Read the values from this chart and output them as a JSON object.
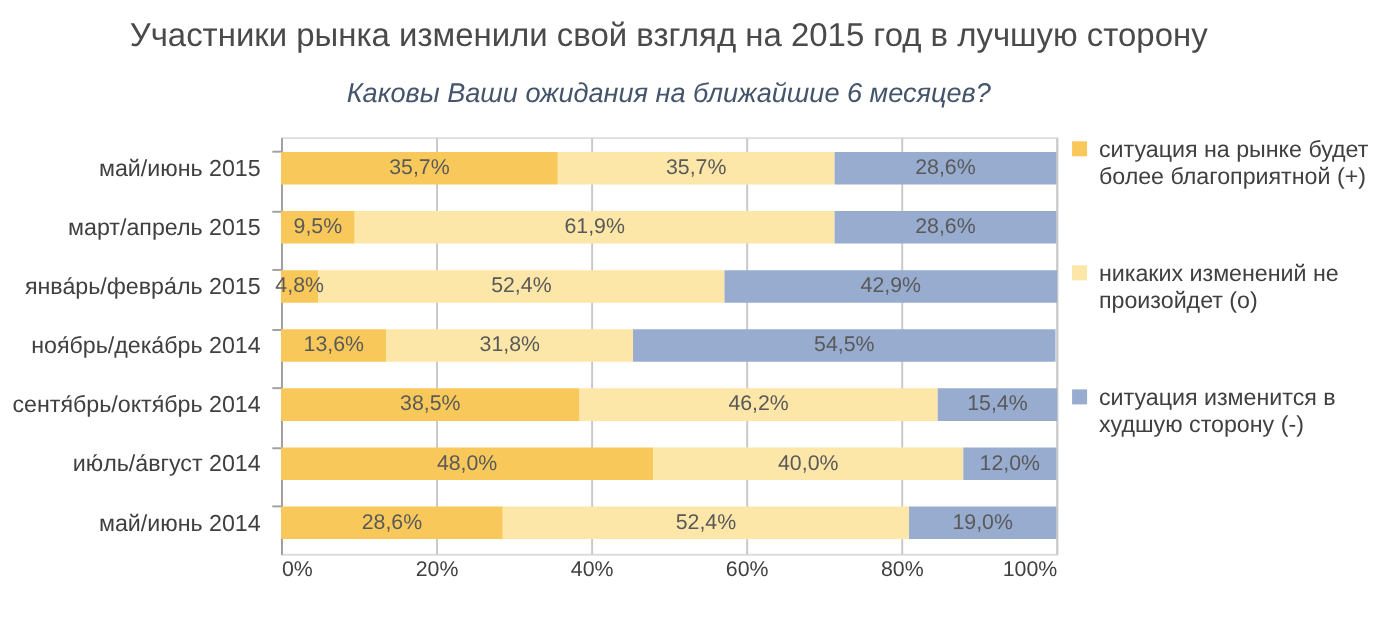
{
  "chart_data": {
    "type": "bar",
    "orientation": "horizontal",
    "stacked": true,
    "title": "Участники рынка изменили свой взгляд на 2015 год в лучшую сторону",
    "subtitle": "Каковы Ваши ожидания на ближайшие 6 месяцев?",
    "categories": [
      "май/июнь 2015",
      "март/апрель 2015",
      "янва́рь/февра́ль 2015",
      "ноя́брь/дека́брь 2014",
      "сентя́брь/октя́брь 2014",
      "ию́ль/а́вгуст 2014",
      "май/июнь 2014"
    ],
    "series": [
      {
        "name": "ситуация на рынке будет более благоприятной (+)",
        "color": "#f8c95a",
        "values": [
          35.7,
          9.5,
          4.8,
          13.6,
          38.5,
          48.0,
          28.6
        ],
        "value_labels": [
          "35,7%",
          "9,5%",
          "4,8%",
          "13,6%",
          "38,5%",
          "48,0%",
          "28,6%"
        ]
      },
      {
        "name": "никаких изменений не произойдет (о)",
        "color": "#fce7a8",
        "values": [
          35.7,
          61.9,
          52.4,
          31.8,
          46.2,
          40.0,
          52.4
        ],
        "value_labels": [
          "35,7%",
          "61,9%",
          "52,4%",
          "31,8%",
          "46,2%",
          "40,0%",
          "52,4%"
        ]
      },
      {
        "name": "ситуация изменится в худшую сторону (-)",
        "color": "#98acd0",
        "values": [
          28.6,
          28.6,
          42.9,
          54.5,
          15.4,
          12.0,
          19.0
        ],
        "value_labels": [
          "28,6%",
          "28,6%",
          "42,9%",
          "54,5%",
          "15,4%",
          "12,0%",
          "19,0%"
        ]
      }
    ],
    "xlim": [
      0,
      100
    ],
    "xticks": [
      {
        "value": 0,
        "label": "0%"
      },
      {
        "value": 20,
        "label": "20%"
      },
      {
        "value": 40,
        "label": "40%"
      },
      {
        "value": 60,
        "label": "60%"
      },
      {
        "value": 80,
        "label": "80%"
      },
      {
        "value": 100,
        "label": "100%"
      }
    ],
    "grid": "x",
    "legend": "right"
  }
}
